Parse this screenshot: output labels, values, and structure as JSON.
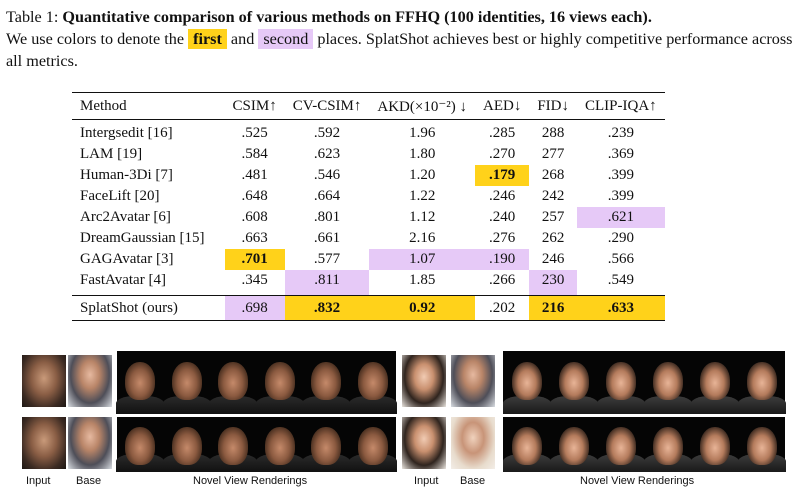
{
  "caption": {
    "table_label": "Table 1:",
    "title": "Quantitative comparison of various methods on FFHQ (100 identities, 16 views each).",
    "text_before": "We use colors to denote the",
    "first_chip": "first",
    "and": "and",
    "second_chip": "second",
    "text_after": "places. SplatShot achieves best or highly competitive performance across all metrics."
  },
  "table": {
    "headers": [
      "Method",
      "CSIM↑",
      "CV-CSIM↑",
      "AKD(×10⁻²) ↓",
      "AED↓",
      "FID↓",
      "CLIP-IQA↑"
    ],
    "rows": [
      {
        "method": "Intergsedit [16]",
        "cells": [
          ".525",
          ".592",
          "1.96",
          ".285",
          "288",
          ".239"
        ],
        "hl": [
          "",
          "",
          "",
          "",
          "",
          ""
        ]
      },
      {
        "method": "LAM [19]",
        "cells": [
          ".584",
          ".623",
          "1.80",
          ".270",
          "277",
          ".369"
        ],
        "hl": [
          "",
          "",
          "",
          "",
          "",
          ""
        ]
      },
      {
        "method": "Human-3Di [7]",
        "cells": [
          ".481",
          ".546",
          "1.20",
          ".179",
          "268",
          ".399"
        ],
        "hl": [
          "",
          "",
          "",
          "first",
          "",
          ""
        ]
      },
      {
        "method": "FaceLift [20]",
        "cells": [
          ".648",
          ".664",
          "1.22",
          ".246",
          "242",
          ".399"
        ],
        "hl": [
          "",
          "",
          "",
          "",
          "",
          ""
        ]
      },
      {
        "method": "Arc2Avatar [6]",
        "cells": [
          ".608",
          ".801",
          "1.12",
          ".240",
          "257",
          ".621"
        ],
        "hl": [
          "",
          "",
          "",
          "",
          "",
          "second"
        ]
      },
      {
        "method": "DreamGaussian [15]",
        "cells": [
          ".663",
          ".661",
          "2.16",
          ".276",
          "262",
          ".290"
        ],
        "hl": [
          "",
          "",
          "",
          "",
          "",
          ""
        ]
      },
      {
        "method": "GAGAvatar [3]",
        "cells": [
          ".701",
          ".577",
          "1.07",
          ".190",
          "246",
          ".566"
        ],
        "hl": [
          "first",
          "",
          "second",
          "second",
          "",
          ""
        ]
      },
      {
        "method": "FastAvatar [4]",
        "cells": [
          ".345",
          ".811",
          "1.85",
          ".266",
          "230",
          ".549"
        ],
        "hl": [
          "",
          "second",
          "",
          "",
          "second",
          ""
        ]
      }
    ],
    "ours": {
      "method": "SplatShot (ours)",
      "cells": [
        ".698",
        ".832",
        "0.92",
        ".202",
        "216",
        ".633"
      ],
      "hl": [
        "second",
        "first",
        "first",
        "",
        "first",
        "first"
      ]
    }
  },
  "figure_labels": {
    "input_left": "Input",
    "base_left": "Base",
    "novel_left": "Novel View Renderings",
    "input_right": "Input",
    "base_right": "Base",
    "novel_right": "Novel View Renderings"
  },
  "colors": {
    "first": "#ffd21a",
    "second": "#e6c9f7"
  }
}
